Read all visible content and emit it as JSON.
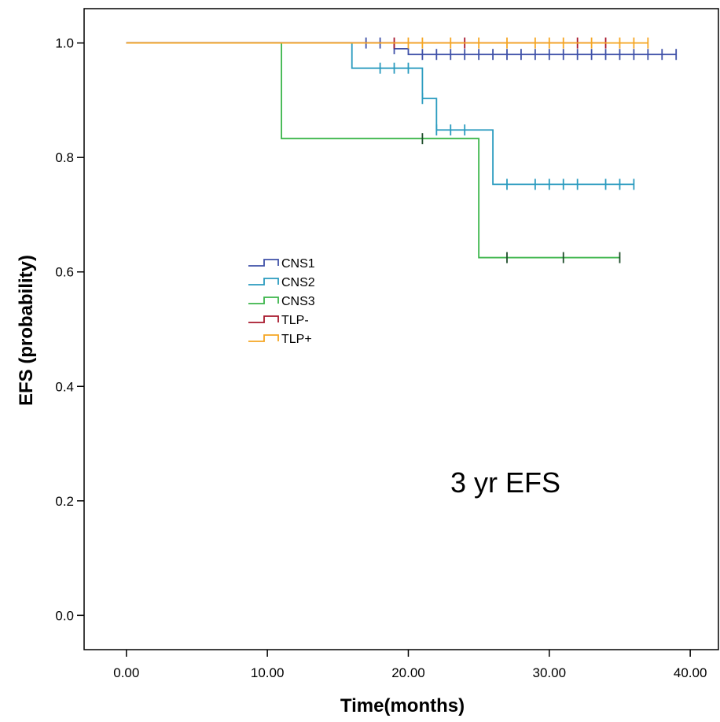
{
  "chart_data": {
    "type": "line",
    "subtype": "kaplan-meier-step",
    "xlabel": "Time(months)",
    "ylabel": "EFS (probability)",
    "xlim": [
      -3,
      42
    ],
    "ylim": [
      -0.06,
      1.06
    ],
    "x_ticks": [
      0,
      10,
      20,
      30,
      40
    ],
    "x_tick_labels": [
      "0.00",
      "10.00",
      "20.00",
      "30.00",
      "40.00"
    ],
    "y_ticks": [
      0.0,
      0.2,
      0.4,
      0.6,
      0.8,
      1.0
    ],
    "y_tick_labels": [
      "0.0",
      "0.2",
      "0.4",
      "0.6",
      "0.8",
      "1.0"
    ],
    "grid": false,
    "legend_position": "center-left",
    "annotation": "3 yr EFS",
    "series": [
      {
        "name": "CNS1",
        "color": "#3f51a8",
        "censor_color": "#3f51a8",
        "steps": [
          [
            0,
            1.0
          ],
          [
            19,
            0.99
          ],
          [
            20,
            0.98
          ],
          [
            39,
            0.98
          ]
        ],
        "censored": [
          [
            17,
            1.0
          ],
          [
            18,
            1.0
          ],
          [
            19,
            0.99
          ],
          [
            21,
            0.98
          ],
          [
            22,
            0.98
          ],
          [
            23,
            0.98
          ],
          [
            24,
            0.98
          ],
          [
            25,
            0.98
          ],
          [
            26,
            0.98
          ],
          [
            27,
            0.98
          ],
          [
            28,
            0.98
          ],
          [
            29,
            0.98
          ],
          [
            30,
            0.98
          ],
          [
            31,
            0.98
          ],
          [
            32,
            0.98
          ],
          [
            33,
            0.98
          ],
          [
            34,
            0.98
          ],
          [
            35,
            0.98
          ],
          [
            36,
            0.98
          ],
          [
            37,
            0.98
          ],
          [
            38,
            0.98
          ],
          [
            39,
            0.98
          ]
        ]
      },
      {
        "name": "CNS2",
        "color": "#2a9bbf",
        "censor_color": "#2a9bbf",
        "steps": [
          [
            0,
            1.0
          ],
          [
            16,
            0.956
          ],
          [
            21,
            0.903
          ],
          [
            22,
            0.848
          ],
          [
            26,
            0.753
          ],
          [
            36,
            0.753
          ]
        ],
        "censored": [
          [
            18,
            0.956
          ],
          [
            19,
            0.956
          ],
          [
            20,
            0.956
          ],
          [
            21,
            0.903
          ],
          [
            22,
            0.848
          ],
          [
            23,
            0.848
          ],
          [
            24,
            0.848
          ],
          [
            27,
            0.753
          ],
          [
            29,
            0.753
          ],
          [
            30,
            0.753
          ],
          [
            31,
            0.753
          ],
          [
            32,
            0.753
          ],
          [
            34,
            0.753
          ],
          [
            35,
            0.753
          ],
          [
            36,
            0.753
          ]
        ]
      },
      {
        "name": "CNS3",
        "color": "#3bb54a",
        "censor_color": "#1d4d2a",
        "steps": [
          [
            0,
            1.0
          ],
          [
            11,
            0.833
          ],
          [
            25,
            0.625
          ],
          [
            35,
            0.625
          ]
        ],
        "censored": [
          [
            21,
            0.833
          ],
          [
            27,
            0.625
          ],
          [
            31,
            0.625
          ],
          [
            35,
            0.625
          ]
        ]
      },
      {
        "name": "TLP-",
        "color": "#a8182c",
        "censor_color": "#a8182c",
        "steps": [
          [
            0,
            1.0
          ],
          [
            34,
            1.0
          ]
        ],
        "censored": [
          [
            19,
            1.0
          ],
          [
            24,
            1.0
          ],
          [
            32,
            1.0
          ],
          [
            34,
            1.0
          ]
        ]
      },
      {
        "name": "TLP+",
        "color": "#f5a623",
        "censor_color": "#f5a623",
        "steps": [
          [
            0,
            1.0
          ],
          [
            37,
            1.0
          ]
        ],
        "censored": [
          [
            20,
            1.0
          ],
          [
            21,
            1.0
          ],
          [
            23,
            1.0
          ],
          [
            25,
            1.0
          ],
          [
            27,
            1.0
          ],
          [
            29,
            1.0
          ],
          [
            30,
            1.0
          ],
          [
            31,
            1.0
          ],
          [
            33,
            1.0
          ],
          [
            35,
            1.0
          ],
          [
            36,
            1.0
          ],
          [
            37,
            1.0
          ]
        ]
      }
    ]
  }
}
